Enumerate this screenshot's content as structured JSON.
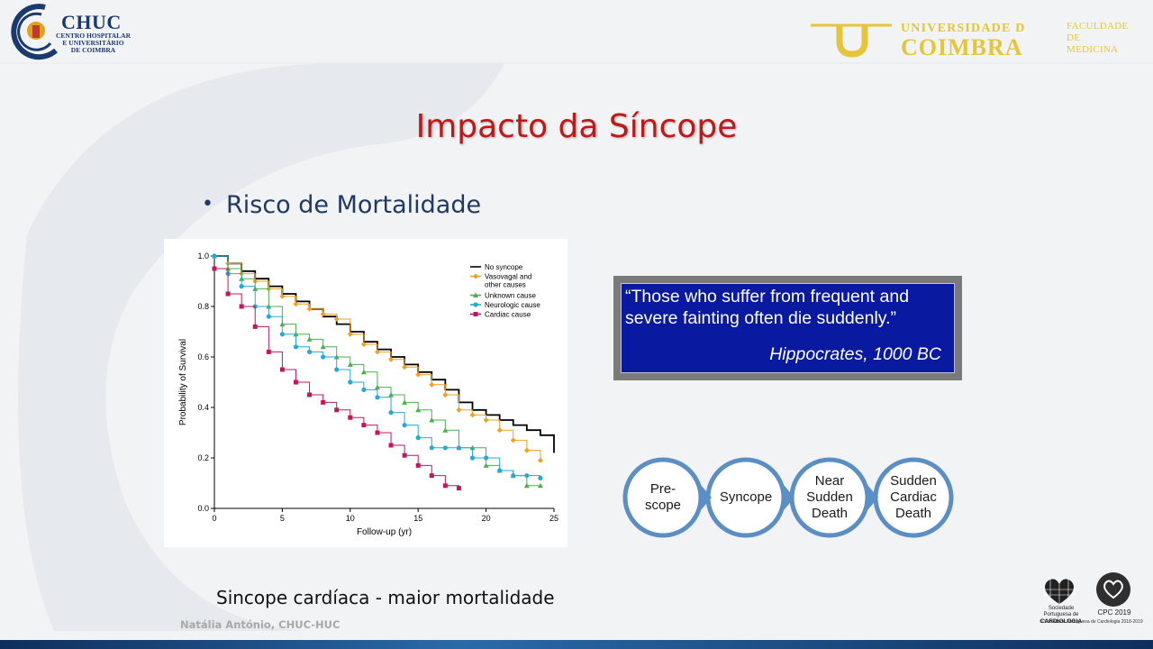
{
  "header": {
    "chuc_logo": "CHUC",
    "chuc_sub_1": "CENTRO HOSPITALAR",
    "chuc_sub_2": "E UNIVERSITÁRIO",
    "chuc_sub_3": "DE COIMBRA",
    "uc_line1": "UNIVERSIDADE D",
    "uc_line2": "COIMBRA",
    "faculty_1": "FACULDADE",
    "faculty_2": "DE",
    "faculty_3": "MEDICINA"
  },
  "slide": {
    "title": "Impacto da Síncope",
    "bullet": "Risco de Mortalidade",
    "caption": "Sincope cardíaca - maior mortalidade",
    "author": "Natália António, CHUC-HUC"
  },
  "quote": {
    "text": "“Those who suffer from frequent and severe fainting often die suddenly.”",
    "author": "Hippocrates, 1000 BC"
  },
  "flow": {
    "steps": [
      "Pre-\nscope",
      "Syncope",
      "Near\nSudden\nDeath",
      "Sudden\nCardiac\nDeath"
    ]
  },
  "footer": {
    "spc_name_1": "Sociedade Portuguesa de",
    "spc_name_2": "CARDIOLOGIA",
    "cpc": "CPC 2019",
    "spc_copyright": "© Sociedade Portuguesa de Cardiologia 2018-2019"
  },
  "colors": {
    "title": "#c01818",
    "bullet": "#1f3864",
    "quote_bg": "#0a1aa0",
    "uc_gold": "#e6c53a",
    "circle_stroke": "#5b8ec4"
  },
  "chart_data": {
    "type": "line",
    "title": "",
    "xlabel": "Follow-up (yr)",
    "ylabel": "Probability of Survival",
    "xlim": [
      0,
      25
    ],
    "ylim": [
      0,
      1.0
    ],
    "xticks": [
      0,
      5,
      10,
      15,
      20,
      25
    ],
    "yticks": [
      0.0,
      0.2,
      0.4,
      0.6,
      0.8,
      1.0
    ],
    "legend_position": "top-right",
    "series": [
      {
        "name": "No syncope",
        "color": "#000000",
        "marker": "none",
        "x": [
          0,
          1,
          2,
          3,
          4,
          5,
          6,
          7,
          8,
          9,
          10,
          11,
          12,
          13,
          14,
          15,
          16,
          17,
          18,
          19,
          20,
          21,
          22,
          23,
          24,
          25
        ],
        "y": [
          1.0,
          0.97,
          0.94,
          0.91,
          0.88,
          0.85,
          0.82,
          0.79,
          0.76,
          0.73,
          0.7,
          0.66,
          0.63,
          0.6,
          0.57,
          0.54,
          0.51,
          0.47,
          0.42,
          0.39,
          0.37,
          0.35,
          0.33,
          0.31,
          0.29,
          0.22
        ]
      },
      {
        "name": "Vasovagal and other causes",
        "color": "#f0a020",
        "marker": "diamond",
        "x": [
          0,
          1,
          2,
          3,
          4,
          5,
          6,
          7,
          8,
          9,
          10,
          11,
          12,
          13,
          14,
          15,
          16,
          17,
          18,
          19,
          20,
          21,
          22,
          23,
          24
        ],
        "y": [
          1.0,
          0.97,
          0.93,
          0.9,
          0.87,
          0.84,
          0.81,
          0.79,
          0.77,
          0.75,
          0.69,
          0.65,
          0.62,
          0.59,
          0.56,
          0.53,
          0.49,
          0.45,
          0.39,
          0.37,
          0.35,
          0.31,
          0.27,
          0.23,
          0.19
        ]
      },
      {
        "name": "Unknown cause",
        "color": "#4caf50",
        "marker": "triangle",
        "x": [
          0,
          1,
          2,
          3,
          4,
          5,
          6,
          7,
          8,
          9,
          10,
          11,
          12,
          13,
          14,
          15,
          16,
          17,
          18,
          19,
          20,
          21,
          22,
          23,
          24
        ],
        "y": [
          1.0,
          0.95,
          0.91,
          0.87,
          0.8,
          0.73,
          0.69,
          0.67,
          0.64,
          0.6,
          0.57,
          0.54,
          0.48,
          0.45,
          0.42,
          0.39,
          0.35,
          0.31,
          0.24,
          0.24,
          0.17,
          0.15,
          0.13,
          0.09,
          0.09
        ]
      },
      {
        "name": "Neurologic cause",
        "color": "#26a9d6",
        "marker": "circle",
        "x": [
          0,
          1,
          2,
          3,
          4,
          5,
          6,
          7,
          8,
          9,
          10,
          11,
          12,
          13,
          14,
          15,
          16,
          17,
          18,
          19,
          20,
          21,
          22,
          23,
          24
        ],
        "y": [
          1.0,
          0.93,
          0.88,
          0.8,
          0.76,
          0.69,
          0.64,
          0.62,
          0.6,
          0.55,
          0.5,
          0.47,
          0.44,
          0.38,
          0.33,
          0.28,
          0.24,
          0.24,
          0.24,
          0.2,
          0.2,
          0.15,
          0.13,
          0.13,
          0.12
        ]
      },
      {
        "name": "Cardiac cause",
        "color": "#c2185b",
        "marker": "square",
        "x": [
          0,
          1,
          2,
          3,
          4,
          5,
          6,
          7,
          8,
          9,
          10,
          11,
          12,
          13,
          14,
          15,
          16,
          17,
          18
        ],
        "y": [
          0.95,
          0.85,
          0.8,
          0.72,
          0.62,
          0.55,
          0.5,
          0.45,
          0.42,
          0.39,
          0.36,
          0.33,
          0.3,
          0.25,
          0.21,
          0.17,
          0.13,
          0.09,
          0.08
        ]
      }
    ]
  }
}
